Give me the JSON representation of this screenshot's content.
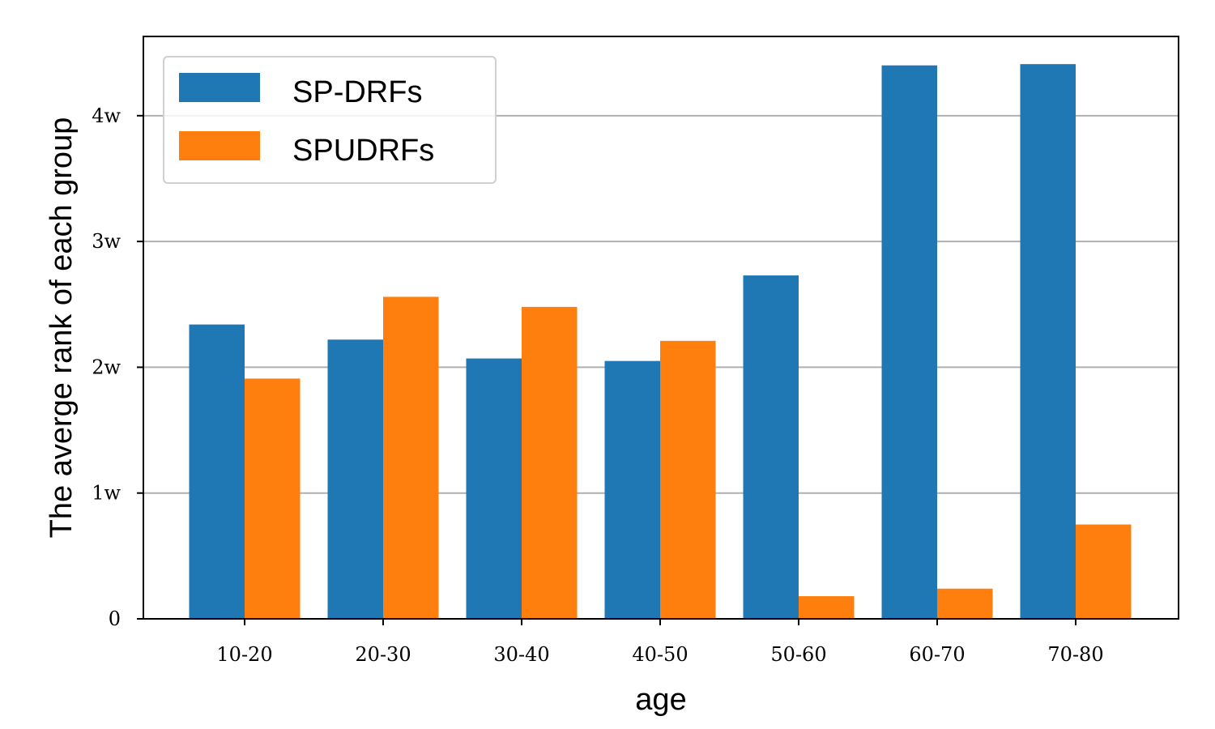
{
  "chart_data": {
    "type": "bar",
    "categories": [
      "10-20",
      "20-30",
      "30-40",
      "40-50",
      "50-60",
      "60-70",
      "70-80"
    ],
    "series": [
      {
        "name": "SP-DRFs",
        "color": "#1f77b4",
        "values": [
          23400,
          22200,
          20700,
          20500,
          27300,
          44000,
          44100
        ]
      },
      {
        "name": "SPUDRFs",
        "color": "#ff7f0e",
        "values": [
          19100,
          25600,
          24800,
          22100,
          1800,
          2400,
          7500
        ]
      }
    ],
    "xlabel": "age",
    "ylabel": "The averge rank of each group",
    "ylim": [
      0,
      46300
    ],
    "yticks": [
      {
        "value": 0,
        "label": "0"
      },
      {
        "value": 10000,
        "label": "1w"
      },
      {
        "value": 20000,
        "label": "2w"
      },
      {
        "value": 30000,
        "label": "3w"
      },
      {
        "value": 40000,
        "label": "4w"
      }
    ],
    "grid": "y-major",
    "legend_position": "top-left"
  }
}
